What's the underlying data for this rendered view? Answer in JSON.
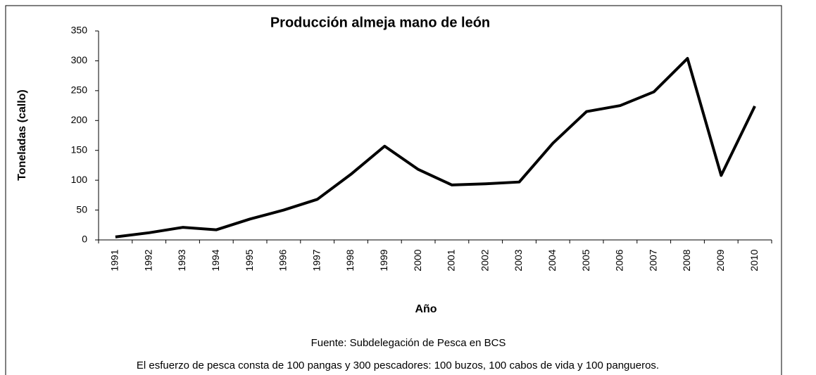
{
  "chart_data": {
    "type": "line",
    "title": "Producción almeja mano de león",
    "x_label": "Año",
    "y_label": "Toneladas (callo)",
    "source": "Fuente: Subdelegación de Pesca en BCS",
    "note": "El esfuerzo de pesca consta de 100 pangas y 300 pescadores: 100 buzos, 100 cabos de vida y 100 pangueros.",
    "categories": [
      "1991",
      "1992",
      "1993",
      "1994",
      "1995",
      "1996",
      "1997",
      "1998",
      "1999",
      "2000",
      "2001",
      "2002",
      "2003",
      "2004",
      "2005",
      "2006",
      "2007",
      "2008",
      "2009",
      "2010"
    ],
    "series": [
      {
        "color": "#000000",
        "values": [
          5,
          12,
          21,
          17,
          35,
          50,
          68,
          110,
          157,
          118,
          92,
          94,
          97,
          162,
          215,
          225,
          248,
          304,
          108,
          224
        ]
      }
    ],
    "ylim": [
      0,
      350
    ],
    "yticks": [
      0,
      50,
      100,
      150,
      200,
      250,
      300,
      350
    ]
  }
}
